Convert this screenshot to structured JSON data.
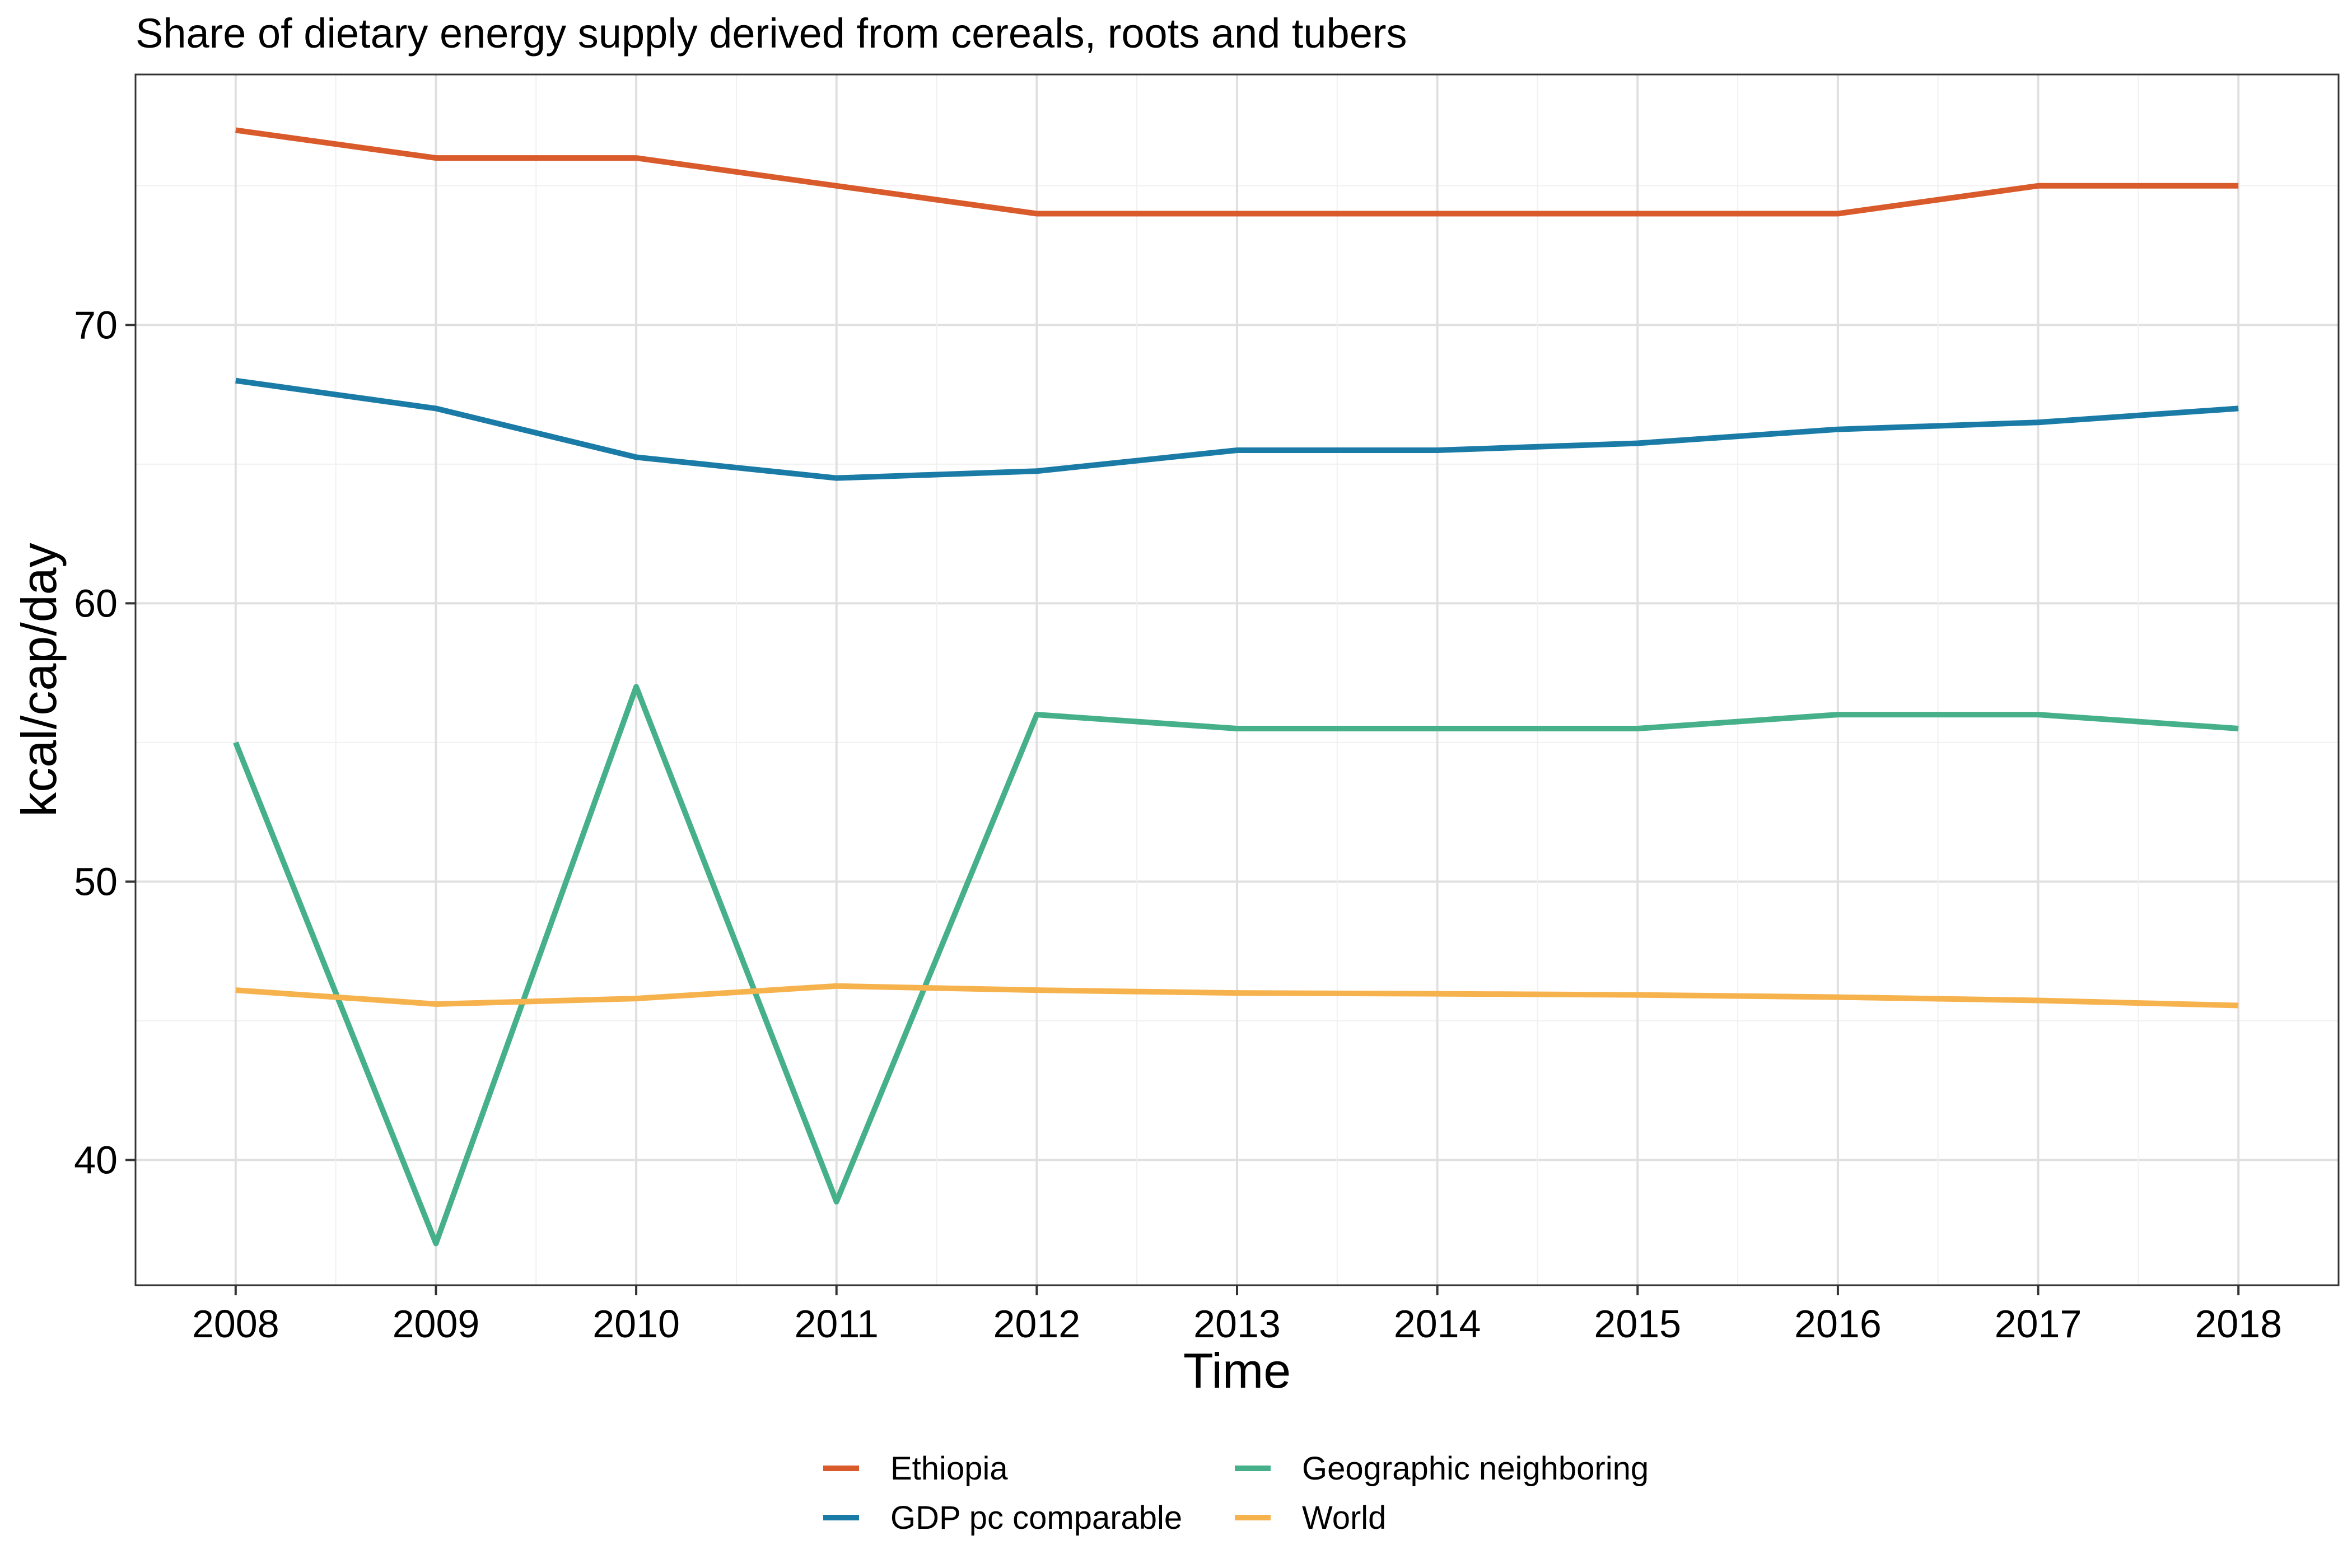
{
  "chart_data": {
    "type": "line",
    "title": "Share of dietary energy supply derived from cereals, roots and tubers",
    "xlabel": "Time",
    "ylabel": "kcal/cap/day",
    "x": [
      2008,
      2009,
      2010,
      2011,
      2012,
      2013,
      2014,
      2015,
      2016,
      2017,
      2018
    ],
    "xlim": [
      2007.5,
      2018.5
    ],
    "ylim": [
      35.5,
      79.0
    ],
    "yticks": [
      40,
      50,
      60,
      70
    ],
    "xticks": [
      2008,
      2009,
      2010,
      2011,
      2012,
      2013,
      2014,
      2015,
      2016,
      2017,
      2018
    ],
    "grid": true,
    "legend_position": "bottom",
    "series": [
      {
        "name": "Ethiopia",
        "color": "#D95A2B",
        "values": [
          77,
          76,
          76,
          75,
          74,
          74,
          74,
          74,
          74,
          75,
          75
        ]
      },
      {
        "name": "GDP pc comparable",
        "color": "#1A7BA6",
        "values": [
          68,
          67,
          65.25,
          64.5,
          64.75,
          65.5,
          65.5,
          65.75,
          66.25,
          66.5,
          67
        ]
      },
      {
        "name": "Geographic neighboring",
        "color": "#46B08A",
        "values": [
          55,
          37,
          57,
          38.5,
          56,
          55.5,
          55.5,
          55.5,
          56,
          56,
          55.5
        ]
      },
      {
        "name": "World",
        "color": "#F6B24D",
        "values": [
          46.1,
          45.6,
          45.8,
          46.25,
          46.1,
          46.0,
          45.97,
          45.93,
          45.85,
          45.73,
          45.55
        ]
      }
    ]
  }
}
